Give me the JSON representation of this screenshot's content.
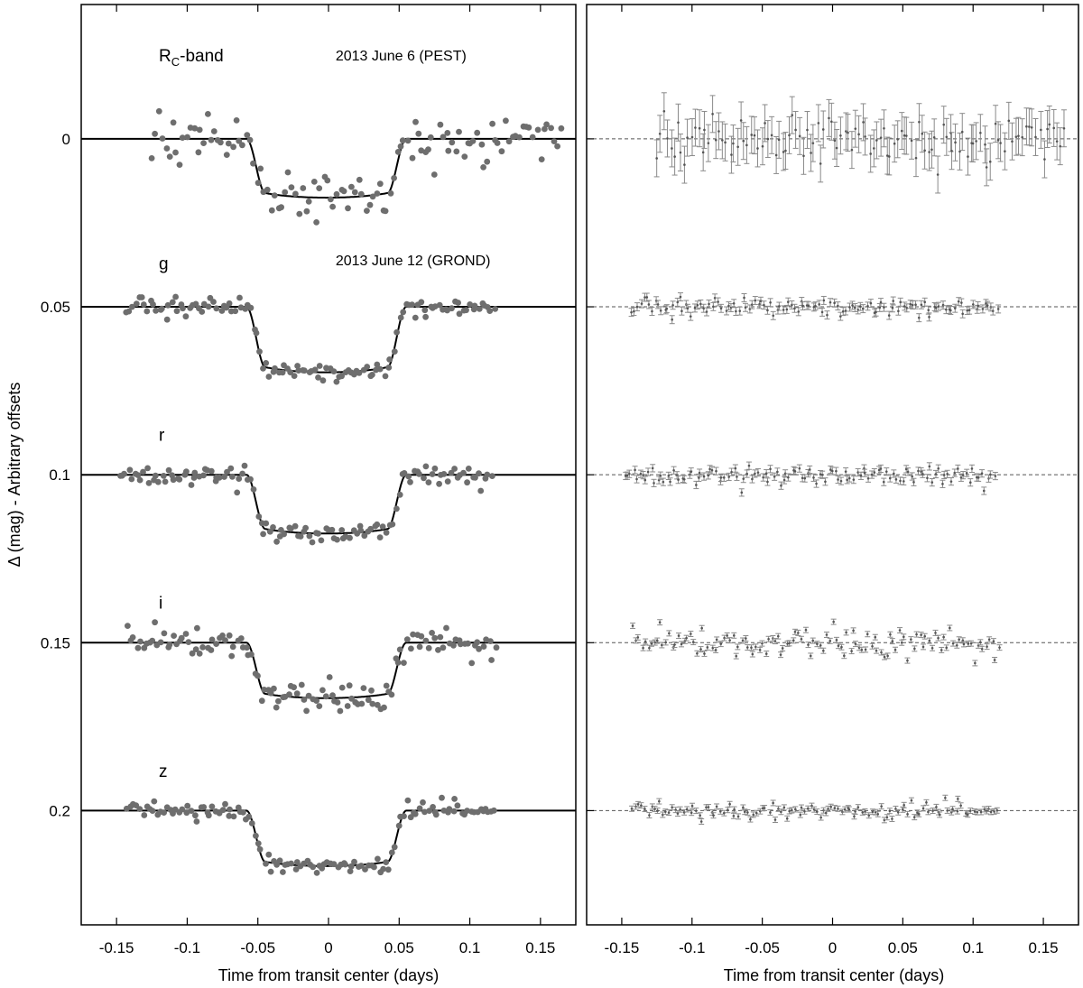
{
  "chart_data": [
    {
      "type": "scatter",
      "panel": "light curves",
      "xlabel": "Time from transit center (days)",
      "ylabel": "Δ (mag) - Arbitrary offsets",
      "xlim": [
        -0.175,
        0.175
      ],
      "ylim": [
        0.234,
        -0.04
      ],
      "y_inverted": true,
      "x_ticks": [
        -0.15,
        -0.1,
        -0.05,
        0,
        0.05,
        0.1,
        0.15
      ],
      "x_tick_labels": [
        "-0.15",
        "-0.1",
        "-0.05",
        "0",
        "0.05",
        "0.1",
        "0.15"
      ],
      "y_ticks": [
        0,
        0.05,
        0.1,
        0.15,
        0.2
      ],
      "y_tick_labels": [
        "0",
        "0.05",
        "0.1",
        "0.15",
        "0.2"
      ],
      "annotations": [
        {
          "text": "2013 June 6 (PEST)",
          "x": 0.005,
          "y": -0.025
        },
        {
          "text": "2013 June 12 (GROND)",
          "x": 0.005,
          "y": 0.036
        }
      ],
      "series": [
        {
          "band": "RC",
          "label_main": "R",
          "label_sub": "C",
          "label_suffix": "-band",
          "offset": 0,
          "depth": 0.0175,
          "t_start": -0.125,
          "t_end": 0.165,
          "n_points": 118,
          "scatter": 0.0035,
          "label_y": -0.025
        },
        {
          "band": "g",
          "label_main": "g",
          "label_sub": "",
          "label_suffix": "",
          "offset": 0.05,
          "depth": 0.0195,
          "t_start": -0.143,
          "t_end": 0.117,
          "n_points": 122,
          "scatter": 0.0012,
          "label_y": 0.037
        },
        {
          "band": "r",
          "label_main": "r",
          "label_sub": "",
          "label_suffix": "",
          "offset": 0.1,
          "depth": 0.0175,
          "t_start": -0.148,
          "t_end": 0.115,
          "n_points": 122,
          "scatter": 0.0015,
          "label_y": 0.088
        },
        {
          "band": "i",
          "label_main": "i",
          "label_sub": "",
          "label_suffix": "",
          "offset": 0.15,
          "depth": 0.0165,
          "t_start": -0.142,
          "t_end": 0.118,
          "n_points": 122,
          "scatter": 0.002,
          "label_y": 0.138
        },
        {
          "band": "z",
          "label_main": "z",
          "label_sub": "",
          "label_suffix": "",
          "offset": 0.2,
          "depth": 0.0165,
          "t_start": -0.142,
          "t_end": 0.118,
          "n_points": 122,
          "scatter": 0.0012,
          "label_y": 0.188
        }
      ],
      "model": {
        "t_contact1": -0.058,
        "t_contact4": 0.055,
        "ingress_duration": 0.013
      },
      "point_color": "#6e6e6e",
      "model_color": "#000000"
    },
    {
      "type": "scatter",
      "panel": "residuals",
      "xlabel": "Time from transit center (days)",
      "xlim": [
        -0.175,
        0.175
      ],
      "ylim": [
        0.234,
        -0.04
      ],
      "x_ticks": [
        -0.15,
        -0.1,
        -0.05,
        0,
        0.05,
        0.1,
        0.15
      ],
      "x_tick_labels": [
        "-0.15",
        "-0.1",
        "-0.05",
        "0",
        "0.05",
        "0.1",
        "0.15"
      ],
      "reference_lines": [
        0,
        0.05,
        0.1,
        0.15,
        0.2
      ],
      "error_bars": [
        0.0055,
        0.0012,
        0.0011,
        0.0008,
        0.0008
      ],
      "point_color": "#8a8a8a",
      "line_style": "dashed"
    }
  ]
}
